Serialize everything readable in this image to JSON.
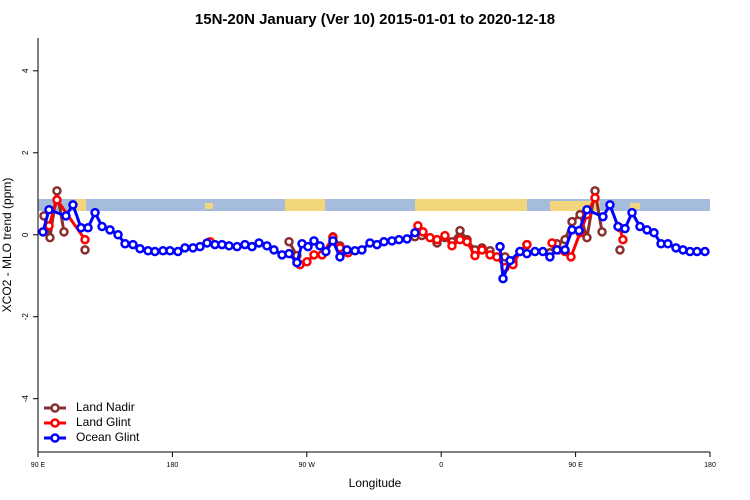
{
  "chart_data": {
    "type": "line",
    "title": "15N-20N January (Ver 10)   2015-01-01 to 2020-12-18",
    "x_label": "Longitude",
    "y_label": "XCO2 - MLO trend (ppm)",
    "xlim": [
      90,
      540
    ],
    "ylim": [
      -5.3,
      4.8
    ],
    "xticks": [
      {
        "value": 90,
        "label": "90 E"
      },
      180,
      {
        "value": 270,
        "label": "90 W"
      },
      {
        "value": 360,
        "label": "0"
      },
      {
        "value": 450,
        "label": "90 E"
      },
      {
        "value": 540,
        "label": "180"
      }
    ],
    "yticks": [
      -4,
      -2,
      0,
      2,
      4
    ],
    "legend": "bottom-left",
    "series": [
      {
        "name": "Land Nadir",
        "color": "#8b2e2e",
        "x": [
          94.0,
          98.0,
          102.7,
          107.4,
          null,
          121.5,
          null,
          258.1,
          263.4,
          null,
          287.5,
          292.2,
          null,
          342.4,
          347.1,
          357.2,
          362.5,
          367.2,
          372.6,
          377.3,
          382.6,
          387.3,
          392.7,
          null,
          402.7,
          408.1,
          null,
          417.4,
          null,
          432.8,
          437.5,
          442.9,
          447.6,
          453.0,
          457.6,
          463.0,
          467.7,
          null,
          479.7
        ],
        "values": [
          0.46,
          -0.07,
          1.07,
          0.07,
          null,
          -0.37,
          null,
          -0.17,
          -0.51,
          null,
          -0.05,
          -0.27,
          null,
          -0.05,
          -0.02,
          -0.2,
          -0.07,
          -0.17,
          0.1,
          -0.12,
          -0.37,
          -0.32,
          -0.39,
          null,
          -0.54,
          -0.66,
          null,
          -0.24,
          null,
          -0.44,
          -0.22,
          -0.12,
          0.32,
          0.49,
          -0.07,
          1.07,
          0.07,
          null,
          -0.37
        ]
      },
      {
        "name": "Land Glint",
        "color": "#ff0000",
        "x": [
          97.4,
          102.7,
          121.5,
          null,
          205.2,
          null,
          265.4,
          270.1,
          274.8,
          280.2,
          287.5,
          292.2,
          297.6,
          null,
          344.4,
          347.8,
          352.5,
          357.2,
          362.5,
          367.2,
          372.6,
          377.3,
          382.6,
          387.3,
          392.7,
          397.3,
          402.7,
          408.1,
          412.7,
          417.4,
          null,
          434.2,
          438.2,
          442.9,
          446.9,
          453.0,
          457.6,
          463.0,
          null,
          479.7,
          481.7
        ],
        "values": [
          0.22,
          0.85,
          -0.12,
          null,
          -0.17,
          null,
          -0.73,
          -0.66,
          -0.49,
          -0.49,
          -0.07,
          -0.32,
          -0.44,
          null,
          0.22,
          0.07,
          -0.07,
          -0.12,
          -0.02,
          -0.27,
          -0.12,
          -0.17,
          -0.51,
          -0.37,
          -0.49,
          -0.54,
          -0.8,
          -0.73,
          -0.41,
          -0.24,
          null,
          -0.2,
          -0.37,
          -0.41,
          -0.54,
          0.05,
          0.49,
          0.9,
          null,
          0.17,
          -0.12
        ]
      },
      {
        "name": "Ocean Glint",
        "color": "#0000ff",
        "x": [
          93.3,
          97.4,
          108.7,
          113.4,
          118.8,
          123.5,
          128.2,
          132.9,
          138.2,
          143.6,
          148.3,
          153.6,
          158.3,
          163.7,
          168.3,
          173.7,
          178.4,
          183.7,
          188.4,
          193.8,
          198.5,
          203.2,
          208.5,
          213.2,
          217.9,
          223.3,
          228.6,
          233.3,
          238.0,
          243.3,
          248.0,
          253.4,
          258.1,
          263.4,
          266.8,
          270.8,
          274.8,
          278.8,
          282.8,
          287.5,
          292.2,
          296.9,
          302.3,
          306.9,
          312.3,
          317.0,
          321.7,
          327.0,
          331.7,
          337.1,
          342.4,
          null,
          399.4,
          401.4,
          406.1,
          412.7,
          417.4,
          422.8,
          428.1,
          432.8,
          437.5,
          442.9,
          447.6,
          452.3,
          457.6,
          468.3,
          473.0,
          478.4,
          483.1,
          487.8,
          493.1,
          497.8,
          502.5,
          507.2,
          511.8,
          517.2,
          521.9,
          526.6,
          531.3,
          536.6
        ],
        "values": [
          0.07,
          0.61,
          0.46,
          0.73,
          0.17,
          0.17,
          0.54,
          0.2,
          0.12,
          0,
          -0.22,
          -0.24,
          -0.34,
          -0.39,
          -0.41,
          -0.39,
          -0.39,
          -0.41,
          -0.32,
          -0.32,
          -0.29,
          -0.2,
          -0.24,
          -0.24,
          -0.27,
          -0.29,
          -0.24,
          -0.29,
          -0.2,
          -0.27,
          -0.37,
          -0.49,
          -0.46,
          -0.68,
          -0.22,
          -0.29,
          -0.15,
          -0.27,
          -0.41,
          -0.15,
          -0.54,
          -0.37,
          -0.39,
          -0.37,
          -0.2,
          -0.24,
          -0.17,
          -0.15,
          -0.12,
          -0.1,
          0.05,
          null,
          -0.29,
          -1.07,
          -0.63,
          -0.41,
          -0.46,
          -0.41,
          -0.41,
          -0.54,
          -0.37,
          -0.37,
          0.12,
          0.1,
          0.61,
          0.44,
          0.73,
          0.2,
          0.15,
          0.54,
          0.2,
          0.12,
          0.05,
          -0.22,
          -0.22,
          -0.32,
          -0.37,
          -0.41,
          -0.41,
          -0.41
        ]
      }
    ]
  }
}
